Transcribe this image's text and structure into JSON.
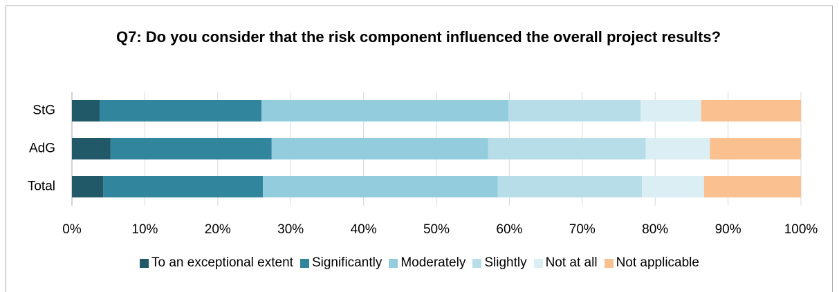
{
  "chart_data": {
    "type": "stacked-bar-horizontal",
    "title": "Q7: Do you consider that the risk component influenced the overall project results?",
    "categories": [
      "StG",
      "AdG",
      "Total"
    ],
    "series": [
      {
        "name": "To an exceptional extent",
        "color": "#215968",
        "values": [
          3.8,
          5.3,
          4.3
        ]
      },
      {
        "name": "Significantly",
        "color": "#31859c",
        "values": [
          22.2,
          22.1,
          21.9
        ]
      },
      {
        "name": "Moderately",
        "color": "#93cddd",
        "values": [
          33.9,
          29.7,
          32.2
        ]
      },
      {
        "name": "Slightly",
        "color": "#b7dee8",
        "values": [
          18.1,
          21.6,
          19.8
        ]
      },
      {
        "name": "Not at all",
        "color": "#dbeef4",
        "values": [
          8.3,
          8.8,
          8.5
        ]
      },
      {
        "name": "Not applicable",
        "color": "#fac090",
        "values": [
          13.7,
          12.5,
          13.3
        ]
      }
    ],
    "xlim": [
      0,
      100
    ],
    "xticks": [
      {
        "value": 0,
        "label": "0%"
      },
      {
        "value": 10,
        "label": "10%"
      },
      {
        "value": 20,
        "label": "20%"
      },
      {
        "value": 30,
        "label": "30%"
      },
      {
        "value": 40,
        "label": "40%"
      },
      {
        "value": 50,
        "label": "50%"
      },
      {
        "value": 60,
        "label": "60%"
      },
      {
        "value": 70,
        "label": "70%"
      },
      {
        "value": 80,
        "label": "80%"
      },
      {
        "value": 90,
        "label": "90%"
      },
      {
        "value": 100,
        "label": "100%"
      }
    ],
    "grid": true,
    "legend": "bottom"
  }
}
